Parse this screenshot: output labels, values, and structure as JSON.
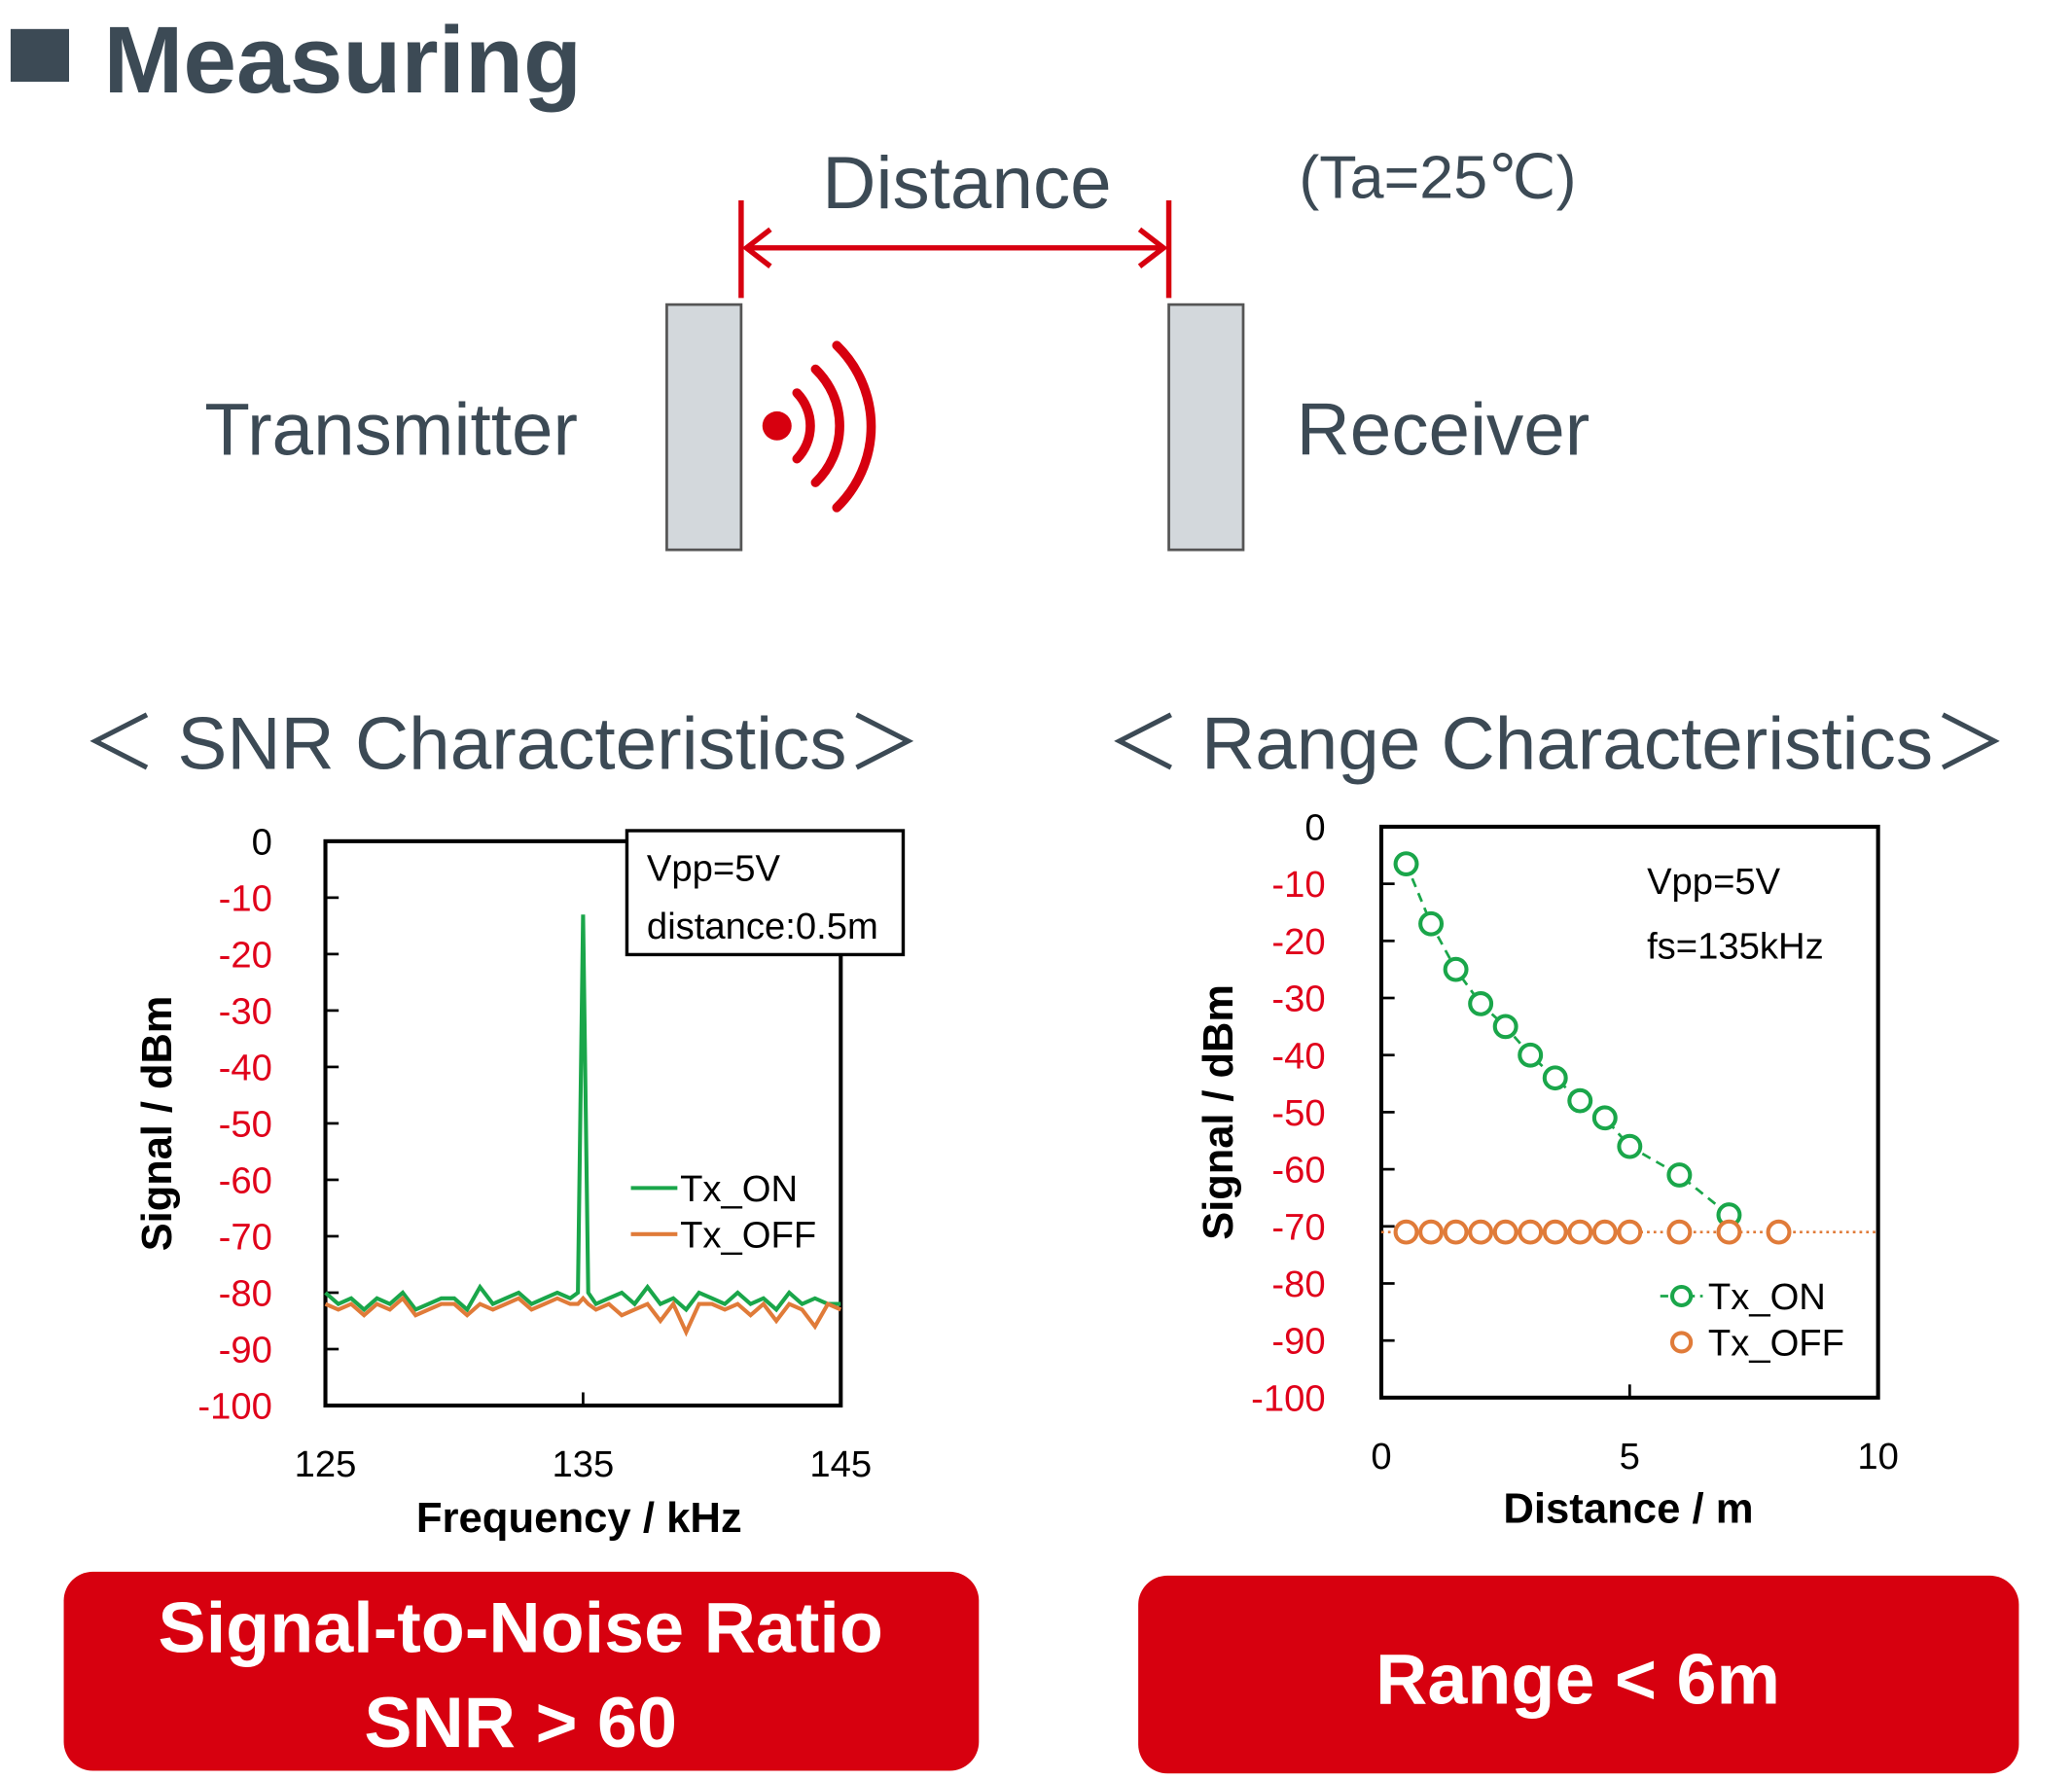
{
  "header": {
    "title": "Measuring"
  },
  "diagram": {
    "distance": "Distance",
    "condition": "(Ta=25℃)",
    "transmitter": "Transmitter",
    "receiver": "Receiver"
  },
  "chart_data": [
    {
      "type": "line",
      "title": "＜ SNR Characteristics＞",
      "x_label": "Frequency / kHz",
      "y_label": "Signal / dBm",
      "annotations": [
        "Vpp=5V",
        "distance:0.5m"
      ],
      "xlim": [
        125,
        145
      ],
      "xticks": [
        125,
        135,
        145
      ],
      "ylim": [
        -100,
        0
      ],
      "yticks": [
        0,
        -10,
        -20,
        -30,
        -40,
        -50,
        -60,
        -70,
        -80,
        -90,
        -100
      ],
      "legend": "right",
      "x": [
        125,
        125.5,
        126,
        126.5,
        127,
        127.5,
        128,
        128.5,
        129,
        129.5,
        130,
        130.5,
        131,
        131.5,
        132,
        132.5,
        133,
        133.5,
        134,
        134.5,
        134.8,
        135,
        135.2,
        135.5,
        136,
        136.5,
        137,
        137.5,
        138,
        138.5,
        139,
        139.5,
        140,
        140.5,
        141,
        141.5,
        142,
        142.5,
        143,
        143.5,
        144,
        144.5,
        145
      ],
      "series": [
        {
          "name": "Tx_ON",
          "color": "#1aa64a",
          "values": [
            -80,
            -82,
            -81,
            -83,
            -81,
            -82,
            -80,
            -83,
            -82,
            -81,
            -81,
            -83,
            -79,
            -82,
            -81,
            -80,
            -82,
            -81,
            -80,
            -81,
            -80,
            -13,
            -80,
            -82,
            -81,
            -80,
            -82,
            -79,
            -82,
            -81,
            -83,
            -80,
            -81,
            -82,
            -80,
            -82,
            -81,
            -83,
            -80,
            -82,
            -81,
            -82,
            -82
          ]
        },
        {
          "name": "Tx_OFF",
          "color": "#e07b39",
          "values": [
            -82,
            -83,
            -82,
            -84,
            -82,
            -83,
            -81,
            -84,
            -83,
            -82,
            -82,
            -84,
            -82,
            -83,
            -82,
            -81,
            -83,
            -82,
            -81,
            -82,
            -82,
            -81,
            -82,
            -83,
            -82,
            -84,
            -83,
            -82,
            -85,
            -82,
            -87,
            -82,
            -82,
            -83,
            -82,
            -84,
            -82,
            -85,
            -82,
            -83,
            -86,
            -82,
            -83
          ]
        }
      ]
    },
    {
      "type": "scatter",
      "title": "＜ Range Characteristics＞",
      "x_label": "Distance / m",
      "y_label": "Signal / dBm",
      "annotations": [
        "Vpp=5V",
        "fs=135kHz"
      ],
      "xlim": [
        0,
        10
      ],
      "xticks": [
        0,
        5,
        10
      ],
      "ylim": [
        -100,
        0
      ],
      "yticks": [
        0,
        -10,
        -20,
        -30,
        -40,
        -50,
        -60,
        -70,
        -80,
        -90,
        -100
      ],
      "legend": "lower right",
      "floor": -71,
      "series": [
        {
          "name": "Tx_ON",
          "color": "#1aa64a",
          "line": "dashed",
          "x": [
            0.5,
            1,
            1.5,
            2,
            2.5,
            3,
            3.5,
            4,
            4.5,
            5,
            6,
            7
          ],
          "values": [
            -6.5,
            -17,
            -25,
            -31,
            -35,
            -40,
            -44,
            -48,
            -51,
            -56,
            -61,
            -68
          ]
        },
        {
          "name": "Tx_OFF",
          "color": "#e07b39",
          "line": "none",
          "x": [
            0.5,
            1,
            1.5,
            2,
            2.5,
            3,
            3.5,
            4,
            4.5,
            5,
            6,
            7,
            8
          ],
          "values": [
            -71,
            -71,
            -71,
            -71,
            -71,
            -71,
            -71,
            -71,
            -71,
            -71,
            -71,
            -71,
            -71
          ]
        }
      ]
    }
  ],
  "summaries": [
    {
      "lines": [
        "Signal-to-Noise Ratio",
        "SNR > 60"
      ]
    },
    {
      "lines": [
        "Range < 6m"
      ]
    }
  ]
}
